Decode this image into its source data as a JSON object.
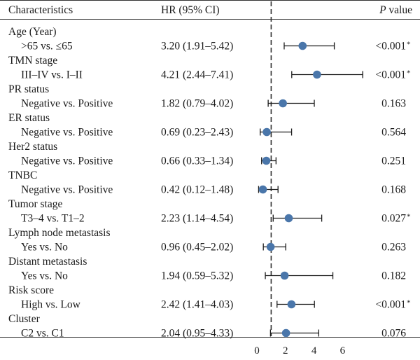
{
  "header": {
    "characteristics": "Characteristics",
    "hr": "HR (95% CI)",
    "p_prefix": "P",
    "p_suffix": " value"
  },
  "chart_data": {
    "type": "forest",
    "reference_line": 1,
    "xticks": [
      0,
      2,
      4,
      6
    ],
    "xlim": [
      0,
      8
    ],
    "point_color": "#4a76aa",
    "rows": [
      {
        "group": "Age (Year)",
        "comparison": ">65 vs. ≤65",
        "hr_text": "3.20 (1.91–5.42)",
        "hr": 3.2,
        "lo": 1.91,
        "hi": 5.42,
        "p": "<0.001",
        "sig": "*"
      },
      {
        "group": "TMN stage",
        "comparison": "III–IV vs. I–II",
        "hr_text": "4.21 (2.44–7.41)",
        "hr": 4.21,
        "lo": 2.44,
        "hi": 7.41,
        "p": "<0.001",
        "sig": "*"
      },
      {
        "group": "PR status",
        "comparison": "Negative vs. Positive",
        "hr_text": "1.82 (0.79–4.02)",
        "hr": 1.82,
        "lo": 0.79,
        "hi": 4.02,
        "p": "0.163",
        "sig": ""
      },
      {
        "group": "ER status",
        "comparison": "Negative vs. Positive",
        "hr_text": "0.69 (0.23–2.43)",
        "hr": 0.69,
        "lo": 0.23,
        "hi": 2.43,
        "p": "0.564",
        "sig": ""
      },
      {
        "group": "Her2 status",
        "comparison": "Negative vs. Positive",
        "hr_text": "0.66 (0.33–1.34)",
        "hr": 0.66,
        "lo": 0.33,
        "hi": 1.34,
        "p": "0.251",
        "sig": ""
      },
      {
        "group": "TNBC",
        "comparison": "Negative vs. Positive",
        "hr_text": "0.42 (0.12–1.48)",
        "hr": 0.42,
        "lo": 0.12,
        "hi": 1.48,
        "p": "0.168",
        "sig": ""
      },
      {
        "group": "Tumor stage",
        "comparison": "T3–4 vs. T1–2",
        "hr_text": "2.23 (1.14–4.54)",
        "hr": 2.23,
        "lo": 1.14,
        "hi": 4.54,
        "p": "0.027",
        "sig": "*"
      },
      {
        "group": "Lymph node metastasis",
        "comparison": "Yes vs. No",
        "hr_text": "0.96 (0.45–2.02)",
        "hr": 0.96,
        "lo": 0.45,
        "hi": 2.02,
        "p": "0.263",
        "sig": ""
      },
      {
        "group": "Distant metastasis",
        "comparison": "Yes vs. No",
        "hr_text": "1.94 (0.59–5.32)",
        "hr": 1.94,
        "lo": 0.59,
        "hi": 5.32,
        "p": "0.182",
        "sig": ""
      },
      {
        "group": "Risk score",
        "comparison": "High vs. Low",
        "hr_text": "2.42 (1.41–4.03)",
        "hr": 2.42,
        "lo": 1.41,
        "hi": 4.03,
        "p": "<0.001",
        "sig": "*"
      },
      {
        "group": "Cluster",
        "comparison": "C2 vs. C1",
        "hr_text": "2.04 (0.95–4.33)",
        "hr": 2.04,
        "lo": 0.95,
        "hi": 4.33,
        "p": "0.076",
        "sig": ""
      }
    ]
  }
}
